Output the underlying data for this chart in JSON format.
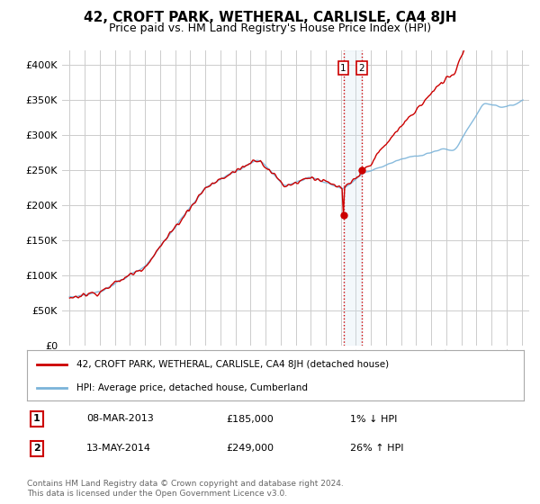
{
  "title": "42, CROFT PARK, WETHERAL, CARLISLE, CA4 8JH",
  "subtitle": "Price paid vs. HM Land Registry's House Price Index (HPI)",
  "sale1_date": "08-MAR-2013",
  "sale1_price": 185000,
  "sale1_hpi": 185000,
  "sale1_label": "1% ↓ HPI",
  "sale2_date": "13-MAY-2014",
  "sale2_price": 249000,
  "sale2_hpi": 249000,
  "sale2_label": "26% ↑ HPI",
  "legend_line1": "42, CROFT PARK, WETHERAL, CARLISLE, CA4 8JH (detached house)",
  "legend_line2": "HPI: Average price, detached house, Cumberland",
  "footer": "Contains HM Land Registry data © Crown copyright and database right 2024.\nThis data is licensed under the Open Government Licence v3.0.",
  "hpi_color": "#7ab3d9",
  "price_color": "#cc0000",
  "vline_color": "#cc0000",
  "vspan_color": "#d0e4f0",
  "background_color": "#ffffff",
  "grid_color": "#cccccc",
  "ylim": [
    0,
    420000
  ],
  "yticks": [
    0,
    50000,
    100000,
    150000,
    200000,
    250000,
    300000,
    350000,
    400000
  ],
  "sale1_yr": 2013.17,
  "sale2_yr": 2014.37
}
